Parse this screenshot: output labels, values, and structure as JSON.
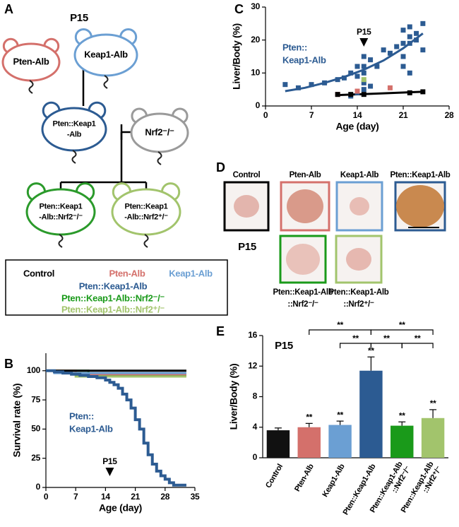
{
  "panel_labels": [
    "A",
    "B",
    "C",
    "D",
    "E"
  ],
  "diagram": {
    "title": "P15",
    "nodes": [
      {
        "label": [
          "Pten-Alb"
        ],
        "color": "#d4706b"
      },
      {
        "label": [
          "Keap1-Alb"
        ],
        "color": "#6b9fd3"
      },
      {
        "label": [
          "Pten::Keap1",
          "-Alb"
        ],
        "color": "#2c5b92"
      },
      {
        "label": [
          "Nrf2⁻/⁻"
        ],
        "color": "#9a9a9a"
      },
      {
        "label": [
          "Pten::Keap1",
          "-Alb::Nrf2⁻/⁻"
        ],
        "color": "#2b9a2b"
      },
      {
        "label": [
          "Pten::Keap1",
          "-Alb::Nrf2⁺/⁻"
        ],
        "color": "#a2c46c"
      }
    ],
    "legend": [
      {
        "label": "Control",
        "color": "#000000"
      },
      {
        "label": "Pten-Alb",
        "color": "#d4706b"
      },
      {
        "label": "Keap1-Alb",
        "color": "#6b9fd3"
      },
      {
        "label": "Pten::Keap1-Alb",
        "color": "#2c5b92"
      },
      {
        "label": "Pten::Keap1-Alb::Nrf2⁻/⁻",
        "color": "#1a9a1a"
      },
      {
        "label": "Pten::Keap1-Alb::Nrf2⁺/⁻",
        "color": "#a2c46c"
      }
    ]
  },
  "photos": {
    "labels": [
      "Control",
      "Pten-Alb",
      "Keap1-Alb",
      "Pten::Keap1-Alb"
    ],
    "colors": [
      "#000000",
      "#d4706b",
      "#6b9fd3",
      "#2c5b92"
    ],
    "subtitle": "P15",
    "bottom_labels": [
      [
        "Pten::Keap1-Alb",
        "::Nrf2⁻/⁻"
      ],
      [
        "Pten::Keap1-Alb",
        "::Nrf2⁺/⁻"
      ]
    ],
    "bottom_colors": [
      "#1a9a1a",
      "#a2c46c"
    ]
  },
  "chart_data": [
    {
      "type": "line",
      "step": true,
      "x_label": "Age (day)",
      "y_label": "Survival rate (%)",
      "xlim": [
        0,
        35
      ],
      "ylim": [
        0,
        115
      ],
      "xticks": [
        0,
        7,
        14,
        21,
        28,
        35
      ],
      "yticks": [
        0,
        25,
        50,
        75,
        100
      ],
      "annotation": [
        "Pten::",
        "Keap1-Alb"
      ],
      "annotation_color": "#2c5b92",
      "marker_label": "P15",
      "marker_x": 15,
      "series": [
        {
          "color": "#1a9a1a",
          "x": [
            0,
            10,
            33
          ],
          "values": [
            100,
            96,
            96
          ]
        },
        {
          "color": "#a2c46c",
          "x": [
            0,
            7,
            33
          ],
          "values": [
            100,
            95,
            95
          ]
        },
        {
          "color": "#d4706b",
          "x": [
            0,
            7,
            33
          ],
          "values": [
            100,
            97,
            97
          ]
        },
        {
          "color": "#6b9fd3",
          "x": [
            0,
            2,
            33
          ],
          "values": [
            100,
            98,
            98
          ]
        },
        {
          "color": "#000000",
          "x": [
            0,
            33
          ],
          "values": [
            100,
            100
          ]
        },
        {
          "color": "#2c5b92",
          "x": [
            0,
            2,
            4,
            6,
            8,
            10,
            12,
            14,
            15,
            16,
            17,
            18,
            19,
            20,
            21,
            22,
            23,
            24,
            25,
            26,
            27,
            28,
            29,
            30,
            33
          ],
          "values": [
            100,
            99,
            98,
            97,
            96,
            95,
            94,
            92,
            90,
            88,
            85,
            80,
            75,
            68,
            58,
            50,
            38,
            28,
            20,
            14,
            10,
            7,
            4,
            2,
            2
          ]
        }
      ]
    },
    {
      "type": "scatter",
      "x_label": "Age (day)",
      "y_label": "Liver/Body (%)",
      "xlim": [
        0,
        28
      ],
      "ylim": [
        0,
        30
      ],
      "xticks": [
        0,
        7,
        14,
        21,
        28
      ],
      "yticks": [
        0,
        10,
        20,
        30
      ],
      "annotation": [
        "Pten::",
        "Keap1-Alb"
      ],
      "annotation_color": "#2c5b92",
      "marker_label": "P15",
      "marker_x": 15,
      "series": [
        {
          "color": "#2c5b92",
          "x": [
            3,
            5,
            7,
            9,
            11,
            12,
            13,
            14,
            14,
            15,
            15,
            15,
            15,
            16,
            17,
            18,
            19,
            20,
            21,
            21,
            21,
            21,
            22,
            22,
            22,
            22,
            23,
            23,
            24,
            24,
            13,
            14,
            15,
            16
          ],
          "values": [
            6.5,
            5.5,
            6.5,
            7,
            8,
            8.5,
            10,
            12,
            9,
            15,
            12,
            10,
            5,
            14,
            12,
            17,
            16,
            18,
            23,
            19,
            15,
            12,
            24,
            21,
            19,
            10,
            22,
            20,
            25,
            17,
            3,
            4,
            7,
            6
          ]
        },
        {
          "color": "#d4706b",
          "x": [
            11,
            14,
            19
          ],
          "values": [
            3.5,
            4.5,
            5.5
          ]
        },
        {
          "color": "#a2c46c",
          "x": [
            15
          ],
          "values": [
            8
          ]
        },
        {
          "color": "#000000",
          "x": [
            11,
            13,
            15,
            22,
            24
          ],
          "values": [
            3.5,
            3.5,
            3.5,
            4,
            4.3
          ]
        }
      ],
      "fits": [
        {
          "color": "#2c5b92",
          "x": [
            3,
            6,
            9,
            12,
            15,
            18,
            21,
            24
          ],
          "values": [
            4.5,
            5.5,
            7,
            8.8,
            11,
            13.8,
            17.5,
            22
          ]
        },
        {
          "color": "#000000",
          "x": [
            11,
            24
          ],
          "values": [
            3.3,
            4.3
          ]
        }
      ]
    },
    {
      "type": "bar",
      "title": "P15",
      "y_label": "Liver/Body (%)",
      "ylim": [
        0,
        16
      ],
      "yticks": [
        0,
        4,
        8,
        12,
        16
      ],
      "categories": [
        [
          "Control"
        ],
        [
          "Pten-Alb"
        ],
        [
          "Keap1-Alb"
        ],
        [
          "Pten::Keap1-Alb"
        ],
        [
          "Pten::Keap1-Alb",
          "::Nrf2⁻/⁻"
        ],
        [
          "Pten::Keap1-Alb",
          "::Nrf2⁺/⁻"
        ]
      ],
      "values": [
        3.6,
        4.0,
        4.3,
        11.4,
        4.2,
        5.2
      ],
      "errors": [
        0.3,
        0.5,
        0.5,
        1.8,
        0.5,
        1.1
      ],
      "colors": [
        "#111111",
        "#d4706b",
        "#6b9fd3",
        "#2c5b92",
        "#1a9a1a",
        "#a2c46c"
      ],
      "significance": [
        null,
        "**",
        "**",
        "**",
        "**",
        "**"
      ],
      "comparisons": [
        {
          "pair": [
            1,
            3
          ],
          "label": "**"
        },
        {
          "pair": [
            3,
            5
          ],
          "label": "**"
        },
        {
          "pair": [
            2,
            3
          ],
          "label": "**"
        },
        {
          "pair": [
            3,
            4
          ],
          "label": "**"
        },
        {
          "pair": [
            4,
            5
          ],
          "label": "**"
        }
      ]
    }
  ]
}
